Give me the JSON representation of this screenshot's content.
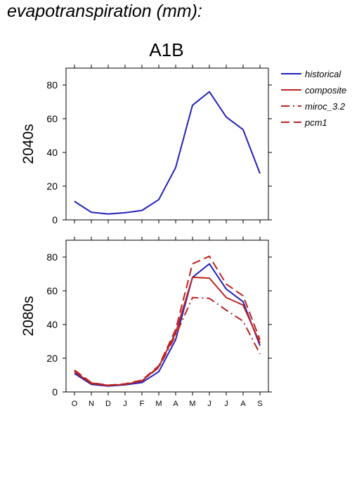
{
  "title": "evapotranspiration (mm):",
  "scenario": "A1B",
  "colors": {
    "historical": "#2222bb",
    "projection": "#bb2222",
    "axis": "#000000"
  },
  "legend": [
    {
      "name": "historical",
      "color": "#2222bb",
      "dash": "solid"
    },
    {
      "name": "composite",
      "color": "#bb2222",
      "dash": "solid"
    },
    {
      "name": "miroc_3.2",
      "color": "#bb2222",
      "dash": "dashdot"
    },
    {
      "name": "pcm1",
      "color": "#bb2222",
      "dash": "dash"
    }
  ],
  "chart_data": [
    {
      "type": "line",
      "panel_label": "2040s",
      "categories": [
        "O",
        "N",
        "D",
        "J",
        "F",
        "M",
        "A",
        "M",
        "J",
        "J",
        "A",
        "S"
      ],
      "ylim": [
        0,
        90
      ],
      "yticks": [
        0,
        20,
        40,
        60,
        80
      ],
      "show_x_tick_labels": false,
      "series": [
        {
          "name": "historical",
          "color": "#2222bb",
          "dash": "solid",
          "values": [
            11,
            4.5,
            3.5,
            4.2,
            5.6,
            12,
            31,
            68,
            76,
            61,
            53.5,
            27.5
          ]
        }
      ]
    },
    {
      "type": "line",
      "panel_label": "2080s",
      "categories": [
        "O",
        "N",
        "D",
        "J",
        "F",
        "M",
        "A",
        "M",
        "J",
        "J",
        "A",
        "S"
      ],
      "ylim": [
        0,
        90
      ],
      "yticks": [
        0,
        20,
        40,
        60,
        80
      ],
      "show_x_tick_labels": true,
      "series": [
        {
          "name": "historical",
          "color": "#2222bb",
          "dash": "solid",
          "values": [
            11,
            4.5,
            3.5,
            4.2,
            5.6,
            12,
            31,
            68,
            76,
            61,
            53.5,
            27.5
          ]
        },
        {
          "name": "composite",
          "color": "#bb2222",
          "dash": "solid",
          "values": [
            12,
            5,
            3.8,
            4.5,
            6.5,
            15,
            35,
            68,
            67.5,
            56,
            51.5,
            29
          ]
        },
        {
          "name": "miroc_3.2",
          "color": "#bb2222",
          "dash": "dashdot",
          "values": [
            12.5,
            5.3,
            3.9,
            4.6,
            6.5,
            14.5,
            33.5,
            56,
            55.5,
            48.5,
            42,
            22.5
          ]
        },
        {
          "name": "pcm1",
          "color": "#bb2222",
          "dash": "dash",
          "values": [
            13,
            5.5,
            4,
            4.8,
            7,
            15.5,
            37,
            76,
            80.5,
            64,
            57,
            31
          ]
        }
      ]
    }
  ]
}
